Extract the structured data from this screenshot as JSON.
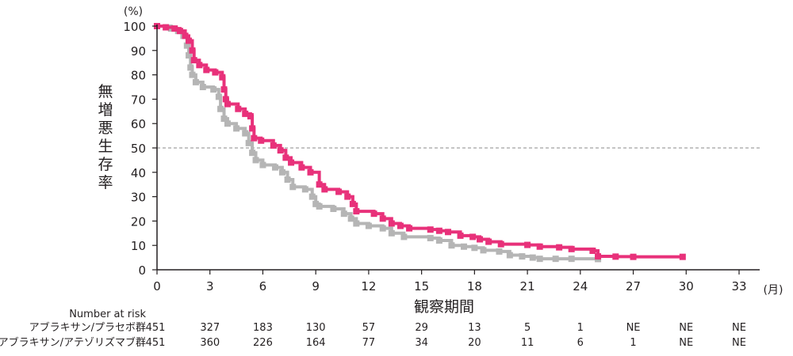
{
  "chart_data": {
    "type": "line",
    "title": "",
    "xlabel": "観察期間",
    "ylabel": "無増悪生存率",
    "y_unit": "(%)",
    "x_unit": "(月)",
    "xlim": [
      0,
      33
    ],
    "ylim": [
      0,
      100
    ],
    "x_ticks": [
      0,
      3,
      6,
      9,
      12,
      15,
      18,
      21,
      24,
      27,
      30,
      33
    ],
    "y_ticks": [
      0,
      10,
      20,
      30,
      40,
      50,
      60,
      70,
      80,
      90,
      100
    ],
    "reference_line": {
      "y": 50,
      "style": "dashed"
    },
    "series": [
      {
        "color": "#e8317a",
        "points": [
          [
            0,
            100
          ],
          [
            0.5,
            99.5
          ],
          [
            1.0,
            99
          ],
          [
            1.3,
            98
          ],
          [
            1.6,
            96
          ],
          [
            1.8,
            94
          ],
          [
            2.0,
            90
          ],
          [
            2.1,
            86
          ],
          [
            2.4,
            84
          ],
          [
            2.8,
            82
          ],
          [
            3.3,
            81
          ],
          [
            3.7,
            79
          ],
          [
            3.8,
            74
          ],
          [
            3.9,
            70
          ],
          [
            4.0,
            68
          ],
          [
            4.6,
            66
          ],
          [
            5.0,
            64
          ],
          [
            5.3,
            63
          ],
          [
            5.4,
            58
          ],
          [
            5.5,
            54
          ],
          [
            5.9,
            53
          ],
          [
            6.6,
            51
          ],
          [
            7.0,
            49
          ],
          [
            7.3,
            46
          ],
          [
            7.6,
            44
          ],
          [
            8.2,
            42
          ],
          [
            8.7,
            40
          ],
          [
            9.2,
            35
          ],
          [
            9.5,
            33
          ],
          [
            10.3,
            32
          ],
          [
            10.8,
            30
          ],
          [
            11.1,
            27
          ],
          [
            11.3,
            24
          ],
          [
            12.3,
            23
          ],
          [
            12.8,
            21
          ],
          [
            13.3,
            19
          ],
          [
            13.8,
            18
          ],
          [
            14.3,
            17
          ],
          [
            15.5,
            16.5
          ],
          [
            16.0,
            16
          ],
          [
            16.5,
            15.5
          ],
          [
            17.2,
            14
          ],
          [
            17.9,
            13.5
          ],
          [
            18.3,
            12.5
          ],
          [
            18.8,
            11.5
          ],
          [
            19.5,
            10.5
          ],
          [
            21.0,
            10.2
          ],
          [
            21.7,
            9.5
          ],
          [
            22.8,
            9.2
          ],
          [
            23.5,
            8.5
          ],
          [
            24.7,
            7.8
          ],
          [
            25.0,
            5.5
          ],
          [
            26.0,
            5.4
          ],
          [
            27.0,
            5.3
          ],
          [
            29.8,
            5.3
          ]
        ]
      },
      {
        "color": "#b5b5b5",
        "points": [
          [
            0,
            100
          ],
          [
            0.8,
            99
          ],
          [
            1.2,
            98
          ],
          [
            1.5,
            96
          ],
          [
            1.7,
            92
          ],
          [
            1.8,
            88
          ],
          [
            1.9,
            83
          ],
          [
            2.0,
            80
          ],
          [
            2.2,
            77
          ],
          [
            2.6,
            75
          ],
          [
            3.2,
            74
          ],
          [
            3.5,
            71
          ],
          [
            3.6,
            66
          ],
          [
            3.8,
            62
          ],
          [
            4.0,
            60
          ],
          [
            4.5,
            58
          ],
          [
            5.0,
            56
          ],
          [
            5.2,
            52
          ],
          [
            5.4,
            48
          ],
          [
            5.6,
            45
          ],
          [
            6.0,
            43
          ],
          [
            6.7,
            42
          ],
          [
            7.1,
            40
          ],
          [
            7.4,
            37
          ],
          [
            7.7,
            34
          ],
          [
            8.4,
            33
          ],
          [
            8.8,
            30
          ],
          [
            9.0,
            27
          ],
          [
            9.2,
            26
          ],
          [
            10.0,
            25
          ],
          [
            10.6,
            23
          ],
          [
            11.0,
            21
          ],
          [
            11.3,
            19
          ],
          [
            12.0,
            18
          ],
          [
            12.8,
            17
          ],
          [
            13.3,
            15
          ],
          [
            14.0,
            13.5
          ],
          [
            15.5,
            13
          ],
          [
            16.0,
            12
          ],
          [
            16.7,
            10
          ],
          [
            17.4,
            9.5
          ],
          [
            18.0,
            9
          ],
          [
            18.5,
            8
          ],
          [
            19.4,
            7.5
          ],
          [
            20.0,
            6
          ],
          [
            20.7,
            5.5
          ],
          [
            21.3,
            5
          ],
          [
            21.7,
            4.5
          ],
          [
            22.6,
            4.5
          ],
          [
            23.5,
            4.5
          ],
          [
            25.0,
            4.4
          ]
        ]
      }
    ],
    "risk_table": {
      "title": "Number at risk",
      "rows": [
        {
          "label": "アブラキサン/プラセボ群",
          "values": [
            "451",
            "327",
            "183",
            "130",
            "57",
            "29",
            "13",
            "5",
            "1",
            "NE",
            "NE",
            "NE"
          ]
        },
        {
          "label": "アブラキサン/アテゾリズマブ群",
          "values": [
            "451",
            "360",
            "226",
            "164",
            "77",
            "34",
            "20",
            "11",
            "6",
            "1",
            "NE",
            "NE"
          ]
        }
      ]
    }
  }
}
